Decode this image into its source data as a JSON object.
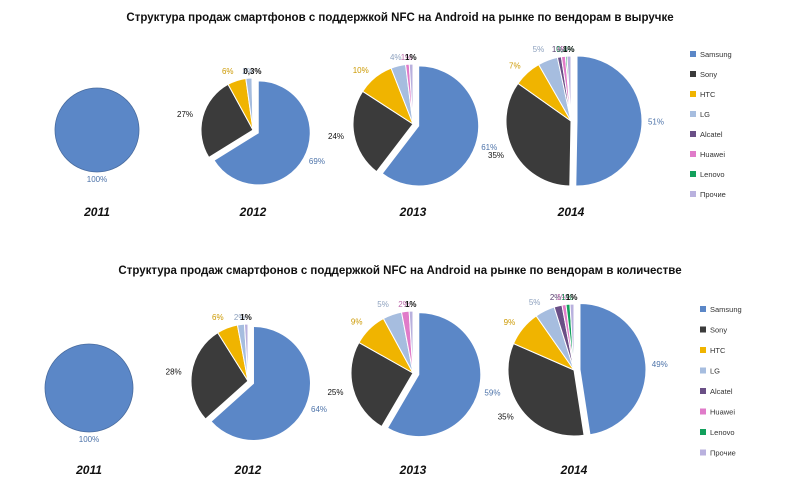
{
  "colors": {
    "Samsung": "#5b87c7",
    "Sony": "#3b3b3b",
    "HTC": "#f0b400",
    "LG": "#a6bddf",
    "Alcatel": "#6a4f86",
    "Huawei": "#e07bc9",
    "Lenovo": "#12a05c",
    "Прочие": "#b9b1de"
  },
  "chart_data": [
    {
      "type": "pie",
      "title": "Структура продаж смартфонов с поддержкой NFC на Android на рынке по вендорам в выручке",
      "legend": [
        "Samsung",
        "Sony",
        "HTC",
        "LG",
        "Alcatel",
        "Huawei",
        "Lenovo",
        "Прочие"
      ],
      "legend_position": "right",
      "pies": [
        {
          "year": "2011",
          "slices": [
            {
              "name": "Samsung",
              "value": 100,
              "label": "100%"
            }
          ]
        },
        {
          "year": "2012",
          "slices": [
            {
              "name": "Samsung",
              "value": 69,
              "label": "69%"
            },
            {
              "name": "Sony",
              "value": 27,
              "label": "27%"
            },
            {
              "name": "HTC",
              "value": 6,
              "label": "6%"
            },
            {
              "name": "LG",
              "value": 2,
              "label": "2%"
            },
            {
              "name": "Прочие",
              "value": 0.3,
              "label": "0,3%"
            }
          ]
        },
        {
          "year": "2013",
          "slices": [
            {
              "name": "Samsung",
              "value": 61,
              "label": "61%"
            },
            {
              "name": "Sony",
              "value": 24,
              "label": "24%"
            },
            {
              "name": "HTC",
              "value": 10,
              "label": "10%"
            },
            {
              "name": "LG",
              "value": 4,
              "label": "4%"
            },
            {
              "name": "Huawei",
              "value": 1,
              "label": "1%"
            },
            {
              "name": "Прочие",
              "value": 1,
              "label": "1%"
            }
          ]
        },
        {
          "year": "2014",
          "slices": [
            {
              "name": "Samsung",
              "value": 51,
              "label": "51%"
            },
            {
              "name": "Sony",
              "value": 35,
              "label": "35%"
            },
            {
              "name": "HTC",
              "value": 7,
              "label": "7%"
            },
            {
              "name": "LG",
              "value": 5,
              "label": "5%"
            },
            {
              "name": "Alcatel",
              "value": 1,
              "label": "1%"
            },
            {
              "name": "Huawei",
              "value": 1,
              "label": "1%"
            },
            {
              "name": "Lenovo",
              "value": 0.4,
              "label": "0,4%"
            },
            {
              "name": "Прочие",
              "value": 1,
              "label": "1%"
            }
          ]
        }
      ]
    },
    {
      "type": "pie",
      "title": "Структура продаж смартфонов с поддержкой NFC на Android на рынке по вендорам в количестве",
      "legend": [
        "Samsung",
        "Sony",
        "HTC",
        "LG",
        "Alcatel",
        "Huawei",
        "Lenovo",
        "Прочие"
      ],
      "legend_position": "right",
      "pies": [
        {
          "year": "2011",
          "slices": [
            {
              "name": "Samsung",
              "value": 100,
              "label": "100%"
            }
          ]
        },
        {
          "year": "2012",
          "slices": [
            {
              "name": "Samsung",
              "value": 64,
              "label": "64%"
            },
            {
              "name": "Sony",
              "value": 28,
              "label": "28%"
            },
            {
              "name": "HTC",
              "value": 6,
              "label": "6%"
            },
            {
              "name": "LG",
              "value": 2,
              "label": "2%"
            },
            {
              "name": "Прочие",
              "value": 1,
              "label": "1%"
            }
          ]
        },
        {
          "year": "2013",
          "slices": [
            {
              "name": "Samsung",
              "value": 59,
              "label": "59%"
            },
            {
              "name": "Sony",
              "value": 25,
              "label": "25%"
            },
            {
              "name": "HTC",
              "value": 9,
              "label": "9%"
            },
            {
              "name": "LG",
              "value": 5,
              "label": "5%"
            },
            {
              "name": "Huawei",
              "value": 2,
              "label": "2%"
            },
            {
              "name": "Прочие",
              "value": 1,
              "label": "1%"
            }
          ]
        },
        {
          "year": "2014",
          "slices": [
            {
              "name": "Samsung",
              "value": 49,
              "label": "49%"
            },
            {
              "name": "Sony",
              "value": 35,
              "label": "35%"
            },
            {
              "name": "HTC",
              "value": 9,
              "label": "9%"
            },
            {
              "name": "LG",
              "value": 5,
              "label": "5%"
            },
            {
              "name": "Alcatel",
              "value": 2,
              "label": "2%"
            },
            {
              "name": "Huawei",
              "value": 1,
              "label": "1%"
            },
            {
              "name": "Lenovo",
              "value": 1,
              "label": "1%"
            },
            {
              "name": "Прочие",
              "value": 1,
              "label": "1%"
            }
          ]
        }
      ]
    }
  ]
}
